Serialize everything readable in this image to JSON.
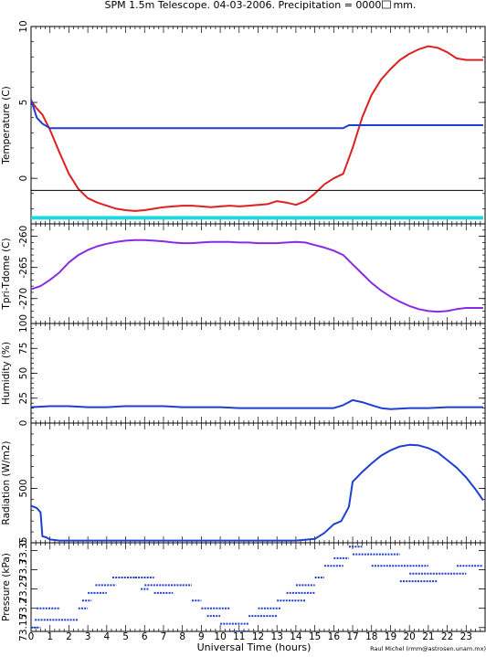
{
  "figure": {
    "title": "SPM 1.5m Telescope. 04-03-2006. Precipitation = 0000",
    "title_unit": "mm.",
    "xlabel": "Universal Time (hours)",
    "credit": "Raul Michel (rmm@astrosen.unam.mx)"
  },
  "chart_data": [
    {
      "type": "line",
      "id": "temperature",
      "ylabel": "Temperature (C)",
      "xlim": [
        0,
        24
      ],
      "ylim": [
        -3,
        10
      ],
      "yticks": [
        0,
        5,
        10
      ],
      "x_ticks": [
        0,
        1,
        2,
        3,
        4,
        5,
        6,
        7,
        8,
        9,
        10,
        11,
        12,
        13,
        14,
        15,
        16,
        17,
        18,
        19,
        20,
        21,
        22,
        23
      ],
      "series": [
        {
          "color": "#dd2020",
          "x": [
            0,
            0.3,
            0.6,
            1.0,
            1.5,
            2.0,
            2.5,
            3.0,
            3.5,
            4.0,
            4.5,
            5.0,
            5.5,
            6.0,
            6.5,
            7.0,
            7.5,
            8.0,
            8.5,
            9.0,
            9.5,
            10.0,
            10.5,
            11.0,
            11.5,
            12.0,
            12.5,
            13.0,
            13.5,
            14.0,
            14.5,
            15.0,
            15.5,
            16.0,
            16.5,
            17.0,
            17.5,
            18.0,
            18.5,
            19.0,
            19.5,
            20.0,
            20.5,
            21.0,
            21.5,
            22.0,
            22.5,
            23.0,
            23.9
          ],
          "y": [
            5.1,
            4.6,
            4.2,
            3.2,
            1.7,
            0.3,
            -0.7,
            -1.3,
            -1.6,
            -1.8,
            -2.0,
            -2.1,
            -2.15,
            -2.1,
            -2.0,
            -1.9,
            -1.85,
            -1.8,
            -1.8,
            -1.85,
            -1.9,
            -1.85,
            -1.8,
            -1.85,
            -1.8,
            -1.75,
            -1.7,
            -1.5,
            -1.6,
            -1.75,
            -1.5,
            -1.0,
            -0.4,
            0.0,
            0.3,
            2.0,
            4.0,
            5.5,
            6.5,
            7.2,
            7.8,
            8.2,
            8.5,
            8.7,
            8.6,
            8.3,
            7.9,
            7.8,
            7.8
          ]
        },
        {
          "color": "#1f3fcf",
          "x": [
            0,
            0.3,
            0.6,
            1.0,
            16.5,
            16.8,
            17.2,
            23.9
          ],
          "y": [
            5.2,
            4.0,
            3.6,
            3.3,
            3.3,
            3.5,
            3.5,
            3.5
          ]
        },
        {
          "color": "#000000",
          "x": [
            0,
            23.9
          ],
          "y": [
            -0.8,
            -0.8
          ]
        },
        {
          "color": "#22d8e0",
          "x": [
            0,
            23.9
          ],
          "y": [
            -2.6,
            -2.6
          ]
        }
      ]
    },
    {
      "type": "line",
      "id": "tpri-tdome",
      "ylabel": "Tpri-Tdome (C)",
      "xlim": [
        0,
        24
      ],
      "ylim": [
        -274,
        -258
      ],
      "yticks": [
        -270,
        -265,
        -260
      ],
      "series": [
        {
          "color": "#8a2be2",
          "x": [
            0,
            0.5,
            1,
            1.5,
            2,
            2.5,
            3,
            3.5,
            4,
            4.5,
            5,
            5.5,
            6,
            6.5,
            7,
            7.5,
            8,
            8.5,
            9,
            9.5,
            10,
            10.5,
            11,
            11.5,
            12,
            12.5,
            13,
            13.5,
            14,
            14.5,
            15,
            15.5,
            16,
            16.5,
            17,
            17.5,
            18,
            18.5,
            19,
            19.5,
            20,
            20.5,
            21,
            21.5,
            22,
            22.5,
            23,
            23.9
          ],
          "y": [
            -268.5,
            -268,
            -267,
            -265.8,
            -264.2,
            -263,
            -262.2,
            -261.6,
            -261.2,
            -260.9,
            -260.7,
            -260.6,
            -260.6,
            -260.7,
            -260.8,
            -261,
            -261.1,
            -261.1,
            -261,
            -260.9,
            -260.9,
            -260.9,
            -261,
            -261,
            -261.1,
            -261.1,
            -261.1,
            -261,
            -260.9,
            -261,
            -261.4,
            -261.8,
            -262.3,
            -263,
            -264.5,
            -266,
            -267.5,
            -268.7,
            -269.7,
            -270.5,
            -271.2,
            -271.7,
            -272,
            -272.1,
            -272,
            -271.7,
            -271.5,
            -271.5
          ]
        }
      ]
    },
    {
      "type": "line",
      "id": "humidity",
      "ylabel": "Humidity (%)",
      "xlim": [
        0,
        24
      ],
      "ylim": [
        0,
        100
      ],
      "yticks": [
        0,
        25,
        50,
        75,
        100
      ],
      "series": [
        {
          "color": "#1f3fcf",
          "x": [
            0,
            1,
            2,
            3,
            4,
            5,
            6,
            7,
            8,
            9,
            10,
            11,
            12,
            13,
            14,
            15,
            16,
            16.5,
            17,
            17.5,
            18,
            18.5,
            19,
            20,
            21,
            22,
            23,
            23.9
          ],
          "y": [
            16,
            17,
            17,
            16,
            16,
            17,
            17,
            17,
            16,
            16,
            16,
            15,
            15,
            15,
            15,
            15,
            15,
            18,
            23,
            21,
            18,
            15,
            14,
            15,
            15,
            16,
            16,
            16
          ]
        }
      ]
    },
    {
      "type": "line",
      "id": "radiation",
      "ylabel": "Radiation (W/m2)",
      "xlim": [
        0,
        24
      ],
      "ylim": [
        0,
        1100
      ],
      "yticks": [
        0,
        500
      ],
      "series": [
        {
          "color": "#1f3fcf",
          "x": [
            0,
            0.3,
            0.5,
            0.6,
            0.8,
            1,
            1.5,
            2,
            3,
            4,
            5,
            6,
            7,
            8,
            9,
            10,
            11,
            12,
            13,
            14,
            15,
            15.5,
            16,
            16.4,
            16.8,
            17,
            17.5,
            18,
            18.5,
            19,
            19.5,
            20,
            20.5,
            21,
            21.5,
            22,
            22.5,
            23,
            23.5,
            23.9
          ],
          "y": [
            340,
            320,
            280,
            60,
            50,
            30,
            20,
            20,
            20,
            20,
            20,
            20,
            20,
            20,
            20,
            20,
            20,
            20,
            20,
            20,
            35,
            90,
            170,
            200,
            330,
            560,
            650,
            730,
            800,
            850,
            885,
            900,
            895,
            870,
            830,
            760,
            690,
            600,
            490,
            390
          ]
        }
      ]
    },
    {
      "type": "scatter",
      "id": "pressure",
      "ylabel": "Pressure (kPa)",
      "xlim": [
        0,
        24
      ],
      "ylim": [
        73.14,
        73.37
      ],
      "ytick_labels": [
        "73.15",
        "73.2",
        "73.25",
        "73.3",
        "73.35"
      ],
      "series": [
        {
          "color": "#1f3fcf",
          "segments": [
            [
              0,
              0.5,
              73.15
            ],
            [
              0.2,
              2.5,
              73.17
            ],
            [
              0.3,
              1.5,
              73.2
            ],
            [
              2.5,
              3.0,
              73.2
            ],
            [
              2.7,
              3.2,
              73.22
            ],
            [
              3.0,
              4.0,
              73.24
            ],
            [
              3.4,
              4.5,
              73.26
            ],
            [
              4.3,
              5.5,
              73.28
            ],
            [
              5.8,
              6.2,
              73.25
            ],
            [
              5.5,
              6.5,
              73.28
            ],
            [
              6.0,
              8.0,
              73.26
            ],
            [
              6.5,
              7.5,
              73.24
            ],
            [
              8.0,
              8.5,
              73.26
            ],
            [
              8.5,
              9.0,
              73.22
            ],
            [
              9.0,
              10.5,
              73.2
            ],
            [
              9.3,
              10.0,
              73.18
            ],
            [
              10.0,
              11.5,
              73.16
            ],
            [
              10.5,
              11.5,
              73.14
            ],
            [
              11.5,
              13.0,
              73.18
            ],
            [
              12.0,
              13.2,
              73.2
            ],
            [
              13.0,
              14.5,
              73.22
            ],
            [
              13.5,
              15.0,
              73.24
            ],
            [
              14.0,
              15.0,
              73.26
            ],
            [
              15.0,
              15.5,
              73.28
            ],
            [
              15.5,
              16.5,
              73.31
            ],
            [
              16.0,
              16.8,
              73.33
            ],
            [
              16.8,
              17.5,
              73.36
            ],
            [
              17.0,
              19.5,
              73.34
            ],
            [
              18.0,
              21.0,
              73.31
            ],
            [
              20.0,
              23.0,
              73.29
            ],
            [
              19.5,
              21.5,
              73.27
            ],
            [
              22.5,
              23.9,
              73.31
            ]
          ]
        }
      ]
    }
  ]
}
